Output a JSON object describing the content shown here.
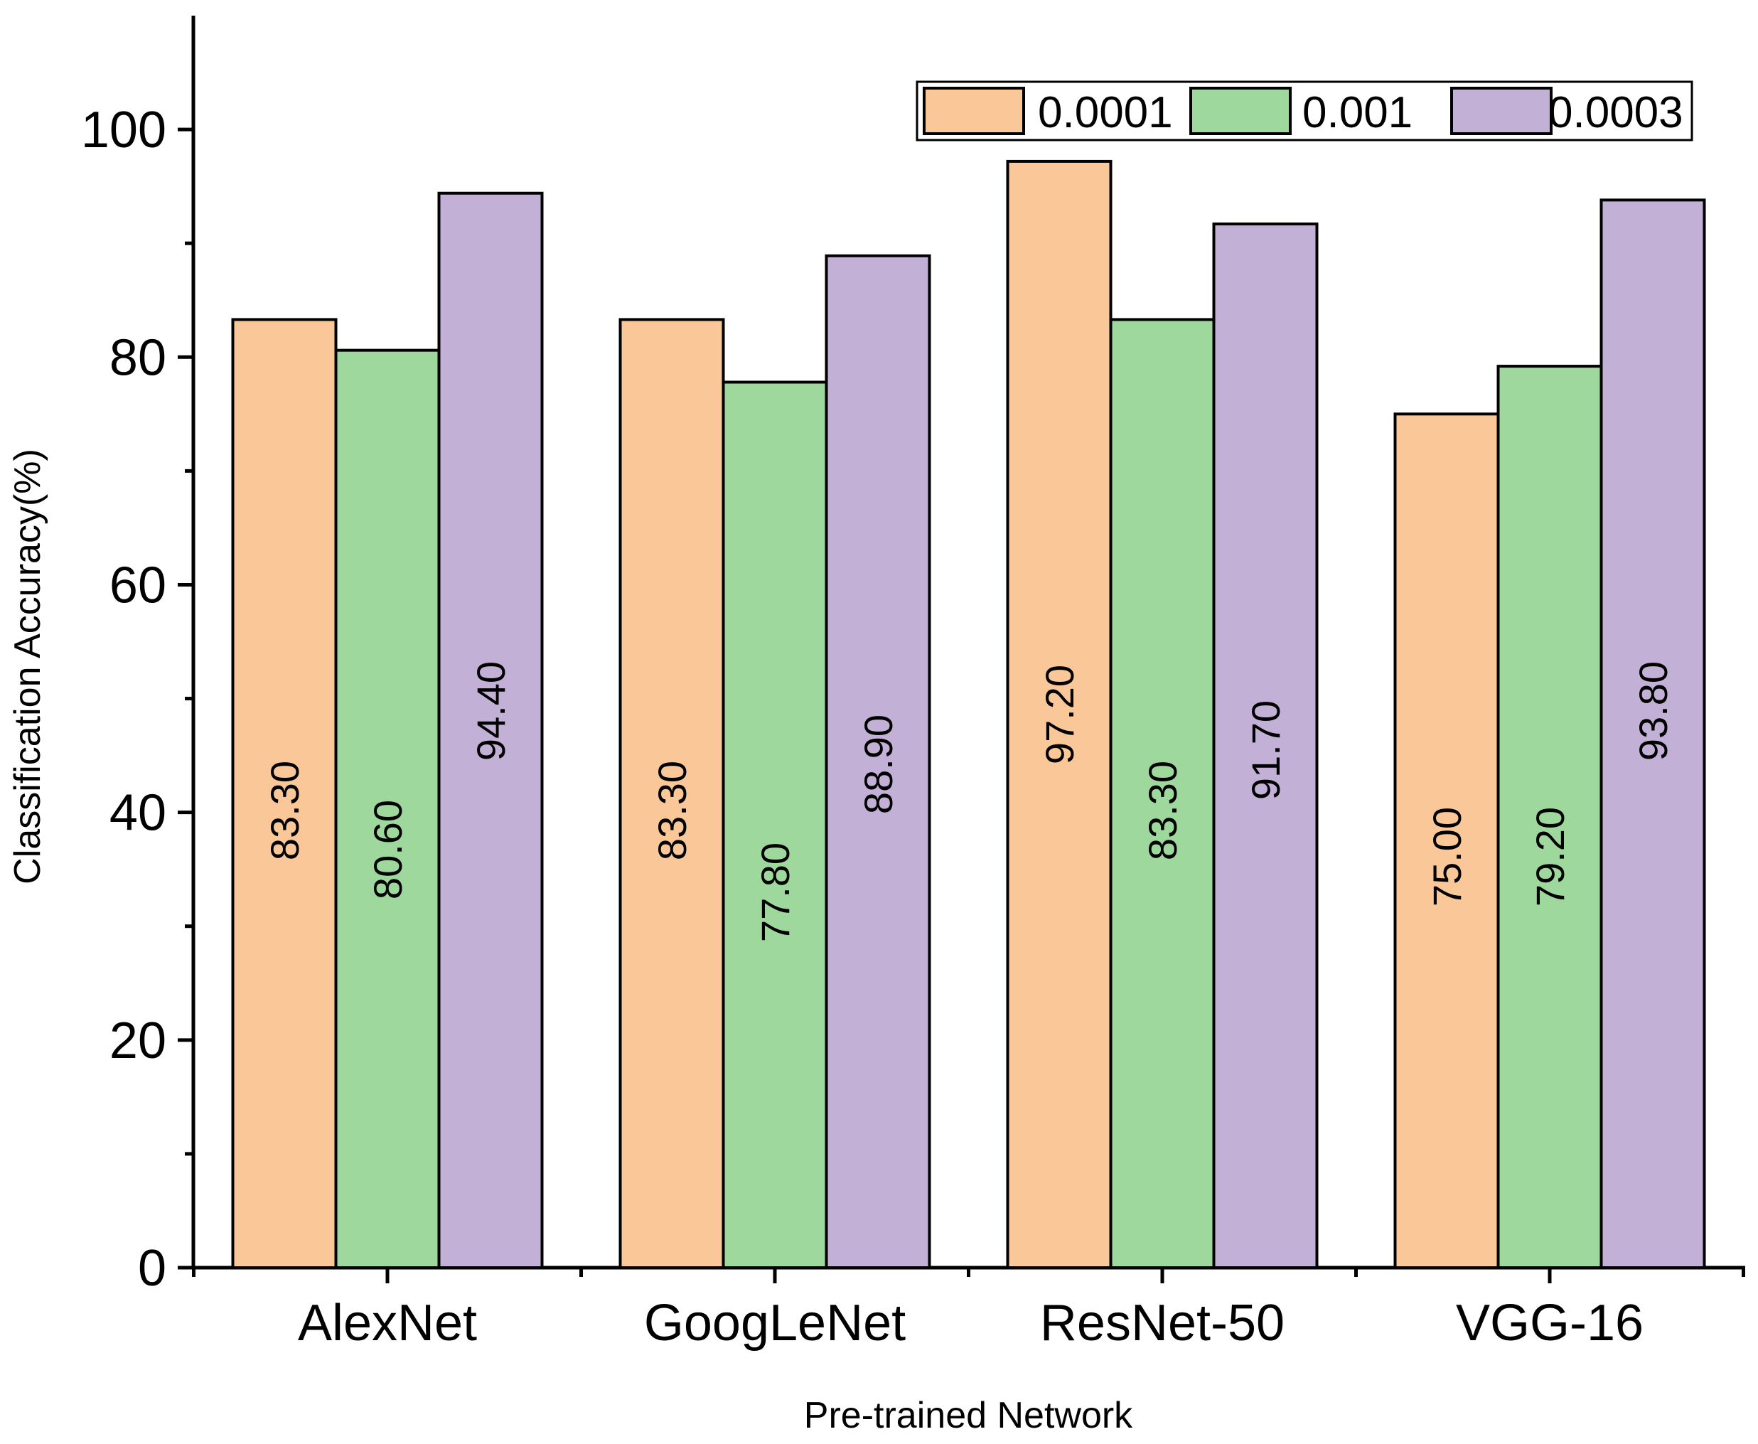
{
  "chart_data": {
    "type": "bar",
    "title": "",
    "xlabel": "Pre-trained Network",
    "ylabel": "Classification Accuracy(%)",
    "ylim": [
      0,
      110
    ],
    "y_major_ticks": [
      0,
      20,
      40,
      60,
      80,
      100
    ],
    "y_tick_labels": [
      "0",
      "20",
      "40",
      "60",
      "80",
      "100"
    ],
    "y_minor_ticks": [
      10,
      30,
      50,
      70,
      90
    ],
    "categories": [
      "AlexNet",
      "GoogLeNet",
      "ResNet-50",
      "VGG-16"
    ],
    "series": [
      {
        "name": "0.0001",
        "color": "#fac898",
        "values": [
          83.3,
          83.3,
          97.2,
          75.0
        ],
        "labels": [
          "83.30",
          "83.30",
          "97.20",
          "75.00"
        ]
      },
      {
        "name": "0.001",
        "color": "#9ed89c",
        "values": [
          80.6,
          77.8,
          83.3,
          79.2
        ],
        "labels": [
          "80.60",
          "77.80",
          "83.30",
          "79.20"
        ]
      },
      {
        "name": "0.0003",
        "color": "#c3b0d6",
        "values": [
          94.4,
          88.9,
          91.7,
          93.8
        ],
        "labels": [
          "94.40",
          "88.90",
          "91.70",
          "93.80"
        ]
      }
    ],
    "legend_position": "top-right",
    "grid": false
  }
}
